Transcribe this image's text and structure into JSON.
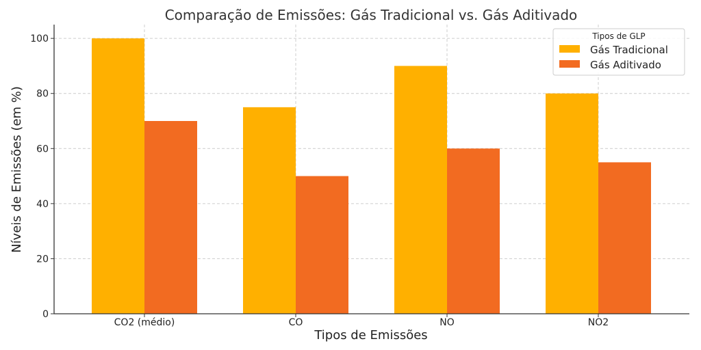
{
  "chart_data": {
    "type": "bar",
    "title": "Comparação de Emissões: Gás Tradicional vs. Gás Aditivado",
    "xlabel": "Tipos de Emissões",
    "ylabel": "Níveis de Emissões (em %)",
    "categories": [
      "CO2 (médio)",
      "CO",
      "NO",
      "NO2"
    ],
    "series": [
      {
        "name": "Gás Tradicional",
        "values": [
          100,
          75,
          90,
          80
        ],
        "color": "#FFB000"
      },
      {
        "name": "Gás Aditivado",
        "values": [
          70,
          50,
          60,
          55
        ],
        "color": "#F26B21"
      }
    ],
    "ylim": [
      0,
      105
    ],
    "yticks": [
      0,
      20,
      40,
      60,
      80,
      100
    ],
    "grid": true,
    "legend": {
      "title": "Tipos de GLP",
      "placement": "top-right"
    }
  }
}
